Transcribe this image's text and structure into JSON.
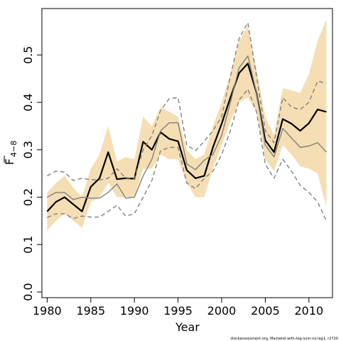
{
  "chart_data": {
    "type": "line",
    "title": "",
    "xlabel": "Year",
    "ylabel": "F̅ 4−8",
    "ylabel_main": "F",
    "ylabel_sub": "4−8",
    "footer": "stockassessment.org, Mackerel-with-tag-sum-no-lag1, r2720",
    "xlim": [
      1979.4,
      2012.7
    ],
    "ylim": [
      -0.012,
      0.598
    ],
    "x_ticks": [
      1980,
      1985,
      1990,
      1995,
      2000,
      2005,
      2010
    ],
    "y_ticks": [
      0.0,
      0.1,
      0.2,
      0.3,
      0.4,
      0.5
    ],
    "y_tick_labels": [
      "0.0",
      "0.1",
      "0.2",
      "0.3",
      "0.4",
      "0.5"
    ],
    "grid": false,
    "legend": "none",
    "x": [
      1980,
      1981,
      1982,
      1983,
      1984,
      1985,
      1986,
      1987,
      1988,
      1989,
      1990,
      1991,
      1992,
      1993,
      1994,
      1995,
      1996,
      1997,
      1998,
      1999,
      2000,
      2001,
      2002,
      2003,
      2004,
      2005,
      2006,
      2007,
      2008,
      2009,
      2010,
      2011,
      2012
    ],
    "series": [
      {
        "kind": "band",
        "color": "#F5DEB3",
        "upper": [
          0.21,
          0.23,
          0.245,
          0.22,
          0.2,
          0.26,
          0.29,
          0.35,
          0.275,
          0.285,
          0.28,
          0.37,
          0.35,
          0.39,
          0.38,
          0.37,
          0.3,
          0.28,
          0.29,
          0.35,
          0.4,
          0.46,
          0.53,
          0.56,
          0.47,
          0.37,
          0.33,
          0.43,
          0.425,
          0.42,
          0.46,
          0.53,
          0.575
        ],
        "lower": [
          0.13,
          0.15,
          0.165,
          0.15,
          0.135,
          0.19,
          0.2,
          0.23,
          0.2,
          0.2,
          0.2,
          0.26,
          0.26,
          0.29,
          0.28,
          0.28,
          0.23,
          0.2,
          0.2,
          0.26,
          0.31,
          0.36,
          0.4,
          0.41,
          0.38,
          0.28,
          0.255,
          0.31,
          0.29,
          0.265,
          0.26,
          0.25,
          0.18
        ]
      },
      {
        "kind": "line",
        "color": "#000000",
        "width": 2.2,
        "dash": "",
        "values": [
          0.17,
          0.19,
          0.2,
          0.185,
          0.17,
          0.222,
          0.24,
          0.295,
          0.238,
          0.24,
          0.239,
          0.317,
          0.3,
          0.337,
          0.323,
          0.318,
          0.257,
          0.24,
          0.245,
          0.305,
          0.355,
          0.41,
          0.462,
          0.482,
          0.42,
          0.32,
          0.295,
          0.365,
          0.355,
          0.34,
          0.356,
          0.385,
          0.38
        ]
      },
      {
        "kind": "line",
        "color": "#808080",
        "width": 1.4,
        "dash": "",
        "values": [
          0.2,
          0.21,
          0.21,
          0.195,
          0.2,
          0.198,
          0.198,
          0.21,
          0.228,
          0.198,
          0.2,
          0.245,
          0.28,
          0.34,
          0.357,
          0.357,
          0.27,
          0.258,
          0.278,
          0.29,
          0.33,
          0.4,
          0.473,
          0.498,
          0.42,
          0.31,
          0.285,
          0.345,
          0.325,
          0.305,
          0.308,
          0.315,
          0.295
        ]
      },
      {
        "kind": "line",
        "color": "#808080",
        "width": 1.4,
        "dash": "6,4",
        "values": [
          0.245,
          0.255,
          0.253,
          0.235,
          0.24,
          0.237,
          0.236,
          0.24,
          0.26,
          0.24,
          0.24,
          0.3,
          0.33,
          0.383,
          0.408,
          0.41,
          0.31,
          0.298,
          0.318,
          0.34,
          0.37,
          0.455,
          0.535,
          0.568,
          0.455,
          0.34,
          0.315,
          0.41,
          0.39,
          0.385,
          0.4,
          0.445,
          0.44
        ]
      },
      {
        "kind": "line",
        "color": "#808080",
        "width": 1.4,
        "dash": "6,4",
        "values": [
          0.157,
          0.165,
          0.165,
          0.155,
          0.16,
          0.158,
          0.158,
          0.17,
          0.183,
          0.16,
          0.165,
          0.2,
          0.235,
          0.298,
          0.305,
          0.305,
          0.23,
          0.218,
          0.24,
          0.255,
          0.29,
          0.34,
          0.405,
          0.428,
          0.38,
          0.27,
          0.24,
          0.28,
          0.255,
          0.225,
          0.21,
          0.19,
          0.15
        ]
      }
    ]
  }
}
